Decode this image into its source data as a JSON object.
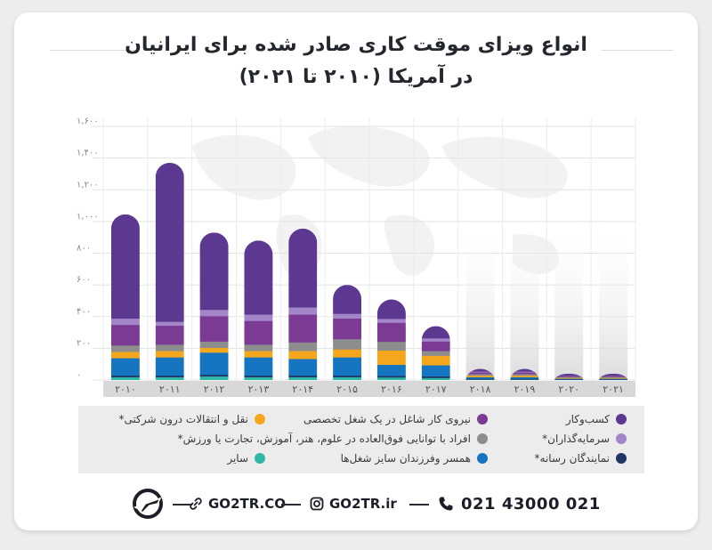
{
  "title_line1": "انواع ویزای موقت کاری صادر شده برای ایرانیان",
  "title_line2": "در آمریکا (۲۰۱۰ تا ۲۰۲۱)",
  "chart_data": {
    "type": "bar",
    "stacked": true,
    "categories": [
      "۲۰۱۰",
      "۲۰۱۱",
      "۲۰۱۲",
      "۲۰۱۳",
      "۲۰۱۴",
      "۲۰۱۵",
      "۲۰۱۶",
      "۲۰۱۷",
      "۲۰۱۸",
      "۲۰۱۹",
      "۲۰۲۰",
      "۲۰۲۱"
    ],
    "y_ticks": [
      "۰",
      "۲۰۰",
      "۴۰۰",
      "۶۰۰",
      "۸۰۰",
      "۱,۰۰۰",
      "۱,۲۰۰",
      "۱,۴۰۰",
      "۱,۶۰۰"
    ],
    "ylim": [
      0,
      1600
    ],
    "series": [
      {
        "name": "سایر",
        "color": "#2fb8a5",
        "values": [
          20,
          20,
          25,
          20,
          20,
          20,
          18,
          15,
          5,
          5,
          3,
          3
        ]
      },
      {
        "name": "نمایندگان رسانه*",
        "color": "#1f3566",
        "values": [
          10,
          10,
          10,
          10,
          10,
          10,
          10,
          10,
          5,
          5,
          3,
          3
        ]
      },
      {
        "name": "همسر وفرزندان سایز شغل‌ها",
        "color": "#1675c0",
        "values": [
          110,
          115,
          140,
          115,
          105,
          115,
          70,
          70,
          10,
          10,
          5,
          5
        ]
      },
      {
        "name": "نقل و انتقالات درون شرکتی*",
        "color": "#f4a71d",
        "values": [
          40,
          40,
          30,
          40,
          50,
          50,
          90,
          60,
          10,
          10,
          5,
          5
        ]
      },
      {
        "name": "افراد با توانایی فوق‌العاده در علوم، هنر، آموزش، تجارت یا ورزش*",
        "color": "#8d8d8d",
        "values": [
          40,
          40,
          40,
          40,
          55,
          65,
          55,
          30,
          10,
          10,
          5,
          5
        ]
      },
      {
        "name": "نیروی کار شاغل در یک شغل تخصصی",
        "color": "#7b3a94",
        "values": [
          130,
          120,
          160,
          150,
          175,
          130,
          120,
          60,
          10,
          10,
          5,
          5
        ]
      },
      {
        "name": "سرمایه‌گذاران*",
        "color": "#a386c8",
        "values": [
          40,
          25,
          40,
          40,
          45,
          30,
          25,
          20,
          5,
          5,
          2,
          2
        ]
      },
      {
        "name": "کسب‌وکار",
        "color": "#5c3891",
        "values": [
          655,
          1000,
          485,
          465,
          495,
          180,
          120,
          75,
          15,
          15,
          12,
          12
        ]
      }
    ]
  },
  "legend_rows": [
    [
      "کسب‌وکار",
      "نیروی کار شاغل در یک شغل تخصصی",
      "نقل و انتقالات درون شرکتی*"
    ],
    [
      "سرمایه‌گذاران*",
      "افراد با توانایی فوق‌العاده در علوم، هنر، آموزش، تجارت یا ورزش*"
    ],
    [
      "نمایندگان رسانه*",
      "همسر وفرزندان سایز شغل‌ها",
      "سایر"
    ]
  ],
  "legend_colors": {
    "business": "#5c3891",
    "specialty": "#7b3a94",
    "intracompany": "#f4a71d",
    "investors": "#a386c8",
    "extraordinary": "#8d8d8d",
    "media": "#1f3566",
    "spouse": "#1675c0",
    "other": "#2fb8a5"
  },
  "footer": {
    "phone": "021 43000 021",
    "instagram": "GO2TR.ir",
    "website": "GO2TR.CO"
  },
  "icons": [
    "phone-icon",
    "instagram-icon",
    "link-icon",
    "go2tr-logo"
  ]
}
